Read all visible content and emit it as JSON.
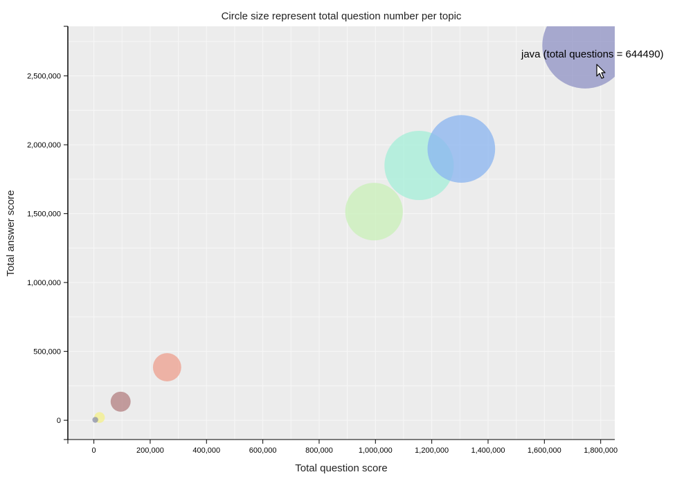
{
  "chart_data": {
    "type": "scatter",
    "title": "Circle size represent total question number per topic",
    "xlabel": "Total question score",
    "ylabel": "Total answer score",
    "xlim": [
      -90000,
      1850000
    ],
    "ylim": [
      -140000,
      2860000
    ],
    "x_ticks": [
      0,
      200000,
      400000,
      600000,
      800000,
      1000000,
      1200000,
      1400000,
      1600000,
      1800000
    ],
    "x_tick_labels": [
      "0",
      "200,000",
      "400,000",
      "600,000",
      "800,000",
      "1,000,000",
      "1,200,000",
      "1,400,000",
      "1,600,000",
      "1,800,000"
    ],
    "y_ticks": [
      0,
      500000,
      1000000,
      1500000,
      2000000,
      2500000
    ],
    "y_tick_labels": [
      "0",
      "500,000",
      "1,000,000",
      "1,500,000",
      "2,000,000",
      "2,500,000"
    ],
    "grid": true,
    "plot_background": "#ececec",
    "points": [
      {
        "x": 1745000,
        "y": 2720000,
        "size": 644490,
        "color": "#8f92c4"
      },
      {
        "x": 1305000,
        "y": 1970000,
        "size": 400000,
        "color": "#8ab4f0"
      },
      {
        "x": 1155000,
        "y": 1850000,
        "size": 420000,
        "color": "#a4efd8"
      },
      {
        "x": 995000,
        "y": 1515000,
        "size": 290000,
        "color": "#c9f0b8"
      },
      {
        "x": 260000,
        "y": 385000,
        "size": 70000,
        "color": "#ee9f8e"
      },
      {
        "x": 95000,
        "y": 135000,
        "size": 35000,
        "color": "#b37f80"
      },
      {
        "x": 20000,
        "y": 20000,
        "size": 10000,
        "color": "#f4f08a"
      },
      {
        "x": 5000,
        "y": 3000,
        "size": 3000,
        "color": "#8a8fa8"
      }
    ],
    "tooltip": {
      "text": "java (total questions = 644490)"
    }
  }
}
